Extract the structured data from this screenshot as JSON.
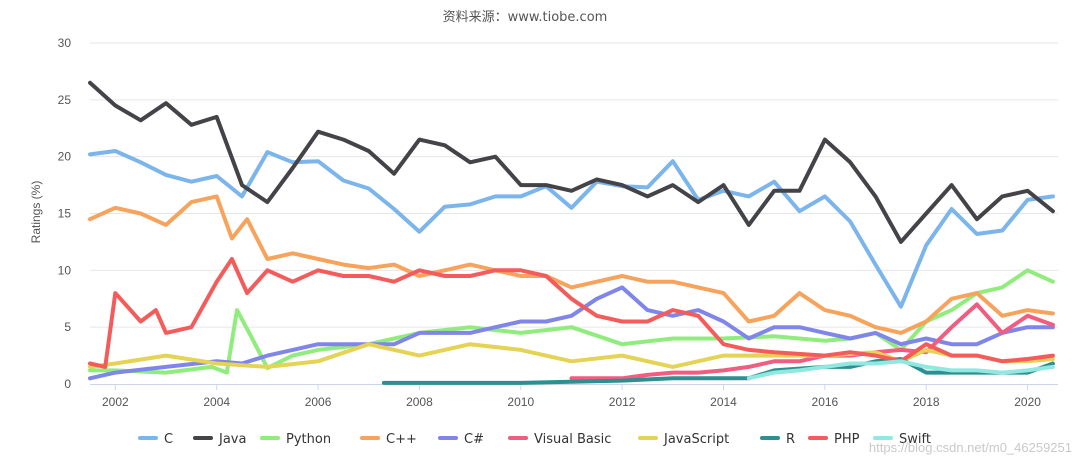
{
  "chart_data": {
    "type": "line",
    "title": "资料来源：www.tiobe.com",
    "xlabel": "",
    "ylabel": "Ratings (%)",
    "xlim": [
      2001.5,
      2020.6
    ],
    "ylim": [
      0,
      30
    ],
    "yticks": [
      0,
      5,
      10,
      15,
      20,
      25,
      30
    ],
    "xticks": [
      2002,
      2004,
      2006,
      2008,
      2010,
      2012,
      2014,
      2016,
      2018,
      2020
    ],
    "legend_position": "bottom",
    "watermark": "https://blog.csdn.net/m0_46259251",
    "series": [
      {
        "name": "C",
        "color": "#7cb5ec",
        "x": [
          2001.5,
          2002,
          2002.5,
          2003,
          2003.5,
          2004,
          2004.5,
          2005,
          2005.5,
          2006,
          2006.5,
          2007,
          2007.5,
          2008,
          2008.5,
          2009,
          2009.5,
          2010,
          2010.5,
          2011,
          2011.5,
          2012,
          2012.5,
          2013,
          2013.5,
          2014,
          2014.5,
          2015,
          2015.5,
          2016,
          2016.5,
          2017,
          2017.5,
          2018,
          2018.5,
          2019,
          2019.5,
          2020,
          2020.5
        ],
        "y": [
          20.2,
          20.5,
          19.5,
          18.4,
          17.8,
          18.3,
          16.5,
          20.4,
          19.5,
          19.6,
          17.9,
          17.2,
          15.4,
          13.4,
          15.6,
          15.8,
          16.5,
          16.5,
          17.4,
          15.5,
          17.8,
          17.4,
          17.3,
          19.6,
          16.2,
          17.0,
          16.5,
          17.8,
          15.2,
          16.5,
          14.3,
          10.5,
          6.8,
          12.2,
          15.4,
          13.2,
          13.5,
          16.2,
          16.5
        ]
      },
      {
        "name": "Java",
        "color": "#434348",
        "x": [
          2001.5,
          2002,
          2002.5,
          2003,
          2003.5,
          2004,
          2004.5,
          2005,
          2005.5,
          2006,
          2006.5,
          2007,
          2007.5,
          2008,
          2008.5,
          2009,
          2009.5,
          2010,
          2010.5,
          2011,
          2011.5,
          2012,
          2012.5,
          2013,
          2013.5,
          2014,
          2014.5,
          2015,
          2015.5,
          2016,
          2016.5,
          2017,
          2017.5,
          2018,
          2018.5,
          2019,
          2019.5,
          2020,
          2020.5
        ],
        "y": [
          26.5,
          24.5,
          23.2,
          24.7,
          22.8,
          23.5,
          17.5,
          16.0,
          19.0,
          22.2,
          21.5,
          20.5,
          18.5,
          21.5,
          21.0,
          19.5,
          20.0,
          17.5,
          17.5,
          17.0,
          18.0,
          17.5,
          16.5,
          17.5,
          16.0,
          17.5,
          14.0,
          17.0,
          17.0,
          21.5,
          19.5,
          16.5,
          12.5,
          15.0,
          17.5,
          14.5,
          16.5,
          17.0,
          15.2
        ]
      },
      {
        "name": "Python",
        "color": "#90ed7d",
        "x": [
          2001.5,
          2002,
          2003,
          2003.9,
          2004.2,
          2004.4,
          2004.7,
          2005,
          2005.5,
          2006,
          2007,
          2008,
          2009,
          2010,
          2011,
          2012,
          2013,
          2014,
          2015,
          2016,
          2016.5,
          2017,
          2017.5,
          2018,
          2018.5,
          2019,
          2019.5,
          2020,
          2020.5
        ],
        "y": [
          1.2,
          1.2,
          1.0,
          1.5,
          1.0,
          6.5,
          4.0,
          1.4,
          2.5,
          3.0,
          3.5,
          4.5,
          5.0,
          4.5,
          5.0,
          3.5,
          4.0,
          4.0,
          4.2,
          3.8,
          4.0,
          4.5,
          3.0,
          5.5,
          6.5,
          8.0,
          8.5,
          10.0,
          9.0
        ]
      },
      {
        "name": "C++",
        "color": "#f7a35c",
        "x": [
          2001.5,
          2002,
          2002.5,
          2003,
          2003.5,
          2004,
          2004.3,
          2004.6,
          2005,
          2005.5,
          2006,
          2006.5,
          2007,
          2007.5,
          2008,
          2008.5,
          2009,
          2009.5,
          2010,
          2010.5,
          2011,
          2011.5,
          2012,
          2012.5,
          2013,
          2013.5,
          2014,
          2014.5,
          2015,
          2015.5,
          2016,
          2016.5,
          2017,
          2017.5,
          2018,
          2018.5,
          2019,
          2019.5,
          2020,
          2020.5
        ],
        "y": [
          14.5,
          15.5,
          15.0,
          14.0,
          16.0,
          16.5,
          12.8,
          14.5,
          11.0,
          11.5,
          11.0,
          10.5,
          10.2,
          10.5,
          9.5,
          10.0,
          10.5,
          10.0,
          9.5,
          9.5,
          8.5,
          9.0,
          9.5,
          9.0,
          9.0,
          8.5,
          8.0,
          5.5,
          6.0,
          8.0,
          6.5,
          6.0,
          5.0,
          4.5,
          5.5,
          7.5,
          8.0,
          6.0,
          6.5,
          6.2
        ]
      },
      {
        "name": "C#",
        "color": "#8085e9",
        "x": [
          2001.5,
          2002,
          2003,
          2004,
          2004.5,
          2005,
          2005.5,
          2006,
          2006.5,
          2007,
          2007.5,
          2008,
          2008.5,
          2009,
          2009.5,
          2010,
          2010.5,
          2011,
          2011.5,
          2012,
          2012.5,
          2013,
          2013.5,
          2014,
          2014.5,
          2015,
          2015.5,
          2016,
          2016.5,
          2017,
          2017.5,
          2018,
          2018.5,
          2019,
          2019.5,
          2020,
          2020.5
        ],
        "y": [
          0.5,
          1.0,
          1.5,
          2.0,
          1.8,
          2.5,
          3.0,
          3.5,
          3.5,
          3.5,
          3.5,
          4.5,
          4.5,
          4.5,
          5.0,
          5.5,
          5.5,
          6.0,
          7.5,
          8.5,
          6.5,
          6.0,
          6.5,
          5.5,
          4.0,
          5.0,
          5.0,
          4.5,
          4.0,
          4.5,
          3.5,
          4.0,
          3.5,
          3.5,
          4.5,
          5.0,
          5.0
        ]
      },
      {
        "name": "Visual Basic",
        "color": "#f15c80",
        "x": [
          2011,
          2011.5,
          2012,
          2012.5,
          2013,
          2013.5,
          2014,
          2014.5,
          2015,
          2015.5,
          2016,
          2016.5,
          2017,
          2017.5,
          2018,
          2018.5,
          2019,
          2019.5,
          2020,
          2020.5
        ],
        "y": [
          0.5,
          0.5,
          0.5,
          0.8,
          1.0,
          1.0,
          1.2,
          1.5,
          2.0,
          2.0,
          2.5,
          2.5,
          2.8,
          3.0,
          2.8,
          5.0,
          7.0,
          4.5,
          6.0,
          5.2
        ]
      },
      {
        "name": "JavaScript",
        "color": "#e4d354",
        "x": [
          2001.5,
          2002,
          2003,
          2004,
          2005,
          2006,
          2007,
          2008,
          2009,
          2010,
          2011,
          2012,
          2013,
          2014,
          2015,
          2016,
          2017,
          2017.5,
          2018,
          2018.5,
          2019,
          2019.5,
          2020,
          2020.5
        ],
        "y": [
          1.5,
          1.8,
          2.5,
          1.8,
          1.5,
          2.0,
          3.5,
          2.5,
          3.5,
          3.0,
          2.0,
          2.5,
          1.5,
          2.5,
          2.5,
          2.5,
          2.8,
          2.0,
          3.0,
          2.5,
          2.5,
          2.0,
          2.0,
          2.2
        ]
      },
      {
        "name": "R",
        "color": "#2b908f",
        "x": [
          2007.3,
          2008,
          2009,
          2010,
          2011,
          2012,
          2013,
          2014,
          2014.5,
          2015,
          2016,
          2016.5,
          2017,
          2017.5,
          2018,
          2018.5,
          2019,
          2019.5,
          2020,
          2020.5
        ],
        "y": [
          0.1,
          0.1,
          0.1,
          0.1,
          0.2,
          0.3,
          0.5,
          0.5,
          0.5,
          1.2,
          1.5,
          1.5,
          2.0,
          2.2,
          1.0,
          1.0,
          1.0,
          1.0,
          1.0,
          1.8
        ]
      },
      {
        "name": "PHP",
        "color": "#f45b5b",
        "x": [
          2001.5,
          2001.8,
          2002,
          2002.5,
          2002.8,
          2003,
          2003.5,
          2004,
          2004.3,
          2004.6,
          2005,
          2005.5,
          2006,
          2006.5,
          2007,
          2007.5,
          2008,
          2008.5,
          2009,
          2009.5,
          2010,
          2010.5,
          2011,
          2011.5,
          2012,
          2012.5,
          2013,
          2013.5,
          2014,
          2014.5,
          2015,
          2016,
          2016.5,
          2017,
          2017.5,
          2018,
          2018.5,
          2019,
          2019.5,
          2020,
          2020.5
        ],
        "y": [
          1.8,
          1.5,
          8.0,
          5.5,
          6.5,
          4.5,
          5.0,
          9.0,
          11.0,
          8.0,
          10.0,
          9.0,
          10.0,
          9.5,
          9.5,
          9.0,
          10.0,
          9.5,
          9.5,
          10.0,
          10.0,
          9.5,
          7.5,
          6.0,
          5.5,
          5.5,
          6.5,
          6.0,
          3.5,
          3.0,
          2.8,
          2.5,
          2.8,
          2.5,
          2.0,
          3.5,
          2.5,
          2.5,
          2.0,
          2.2,
          2.5
        ]
      },
      {
        "name": "Swift",
        "color": "#91e8e1",
        "x": [
          2014.5,
          2015,
          2015.5,
          2016,
          2016.5,
          2017,
          2017.5,
          2018,
          2018.5,
          2019,
          2019.5,
          2020,
          2020.5
        ],
        "y": [
          0.5,
          1.0,
          1.2,
          1.5,
          1.8,
          1.8,
          2.0,
          1.5,
          1.2,
          1.2,
          1.0,
          1.2,
          1.5
        ]
      }
    ]
  }
}
